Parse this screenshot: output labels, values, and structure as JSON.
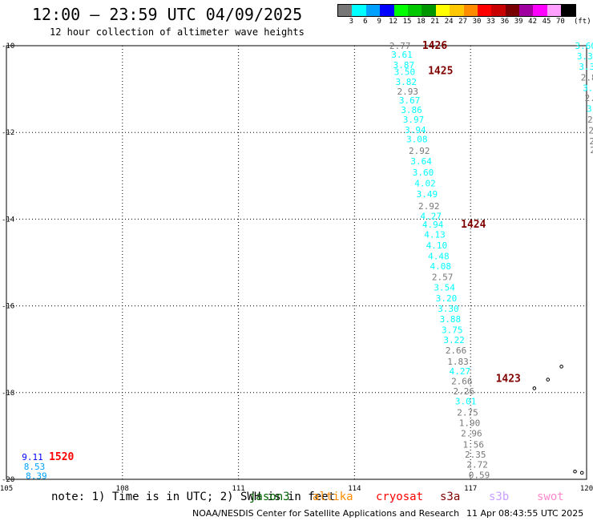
{
  "header": {
    "title": "12:00 – 23:59 UTC 04/09/2025",
    "subtitle": "12 hour collection of altimeter wave heights"
  },
  "colorbar": {
    "colors": [
      "#777777",
      "#00ffff",
      "#00a0ff",
      "#0000ff",
      "#00ff00",
      "#00c800",
      "#009600",
      "#ffff00",
      "#ffc800",
      "#ff8c00",
      "#ff0000",
      "#c80000",
      "#780000",
      "#a000a0",
      "#ff00ff",
      "#ffa0ff",
      "#000000"
    ],
    "ticks": [
      "3",
      "6",
      "9",
      "12",
      "15",
      "18",
      "21",
      "24",
      "27",
      "30",
      "33",
      "36",
      "39",
      "42",
      "45",
      "70"
    ],
    "unit": "(ft)"
  },
  "map": {
    "lat_labels": [
      "-10",
      "-12",
      "-14",
      "-16",
      "-18",
      "-20"
    ],
    "lon_labels": [
      "105",
      "108",
      "111",
      "114",
      "117",
      "120"
    ],
    "passes": [
      {
        "name": "1426",
        "lon": 115.75,
        "lat": -10.0,
        "color": "#800000"
      },
      {
        "name": "1425",
        "lon": 115.9,
        "lat": -10.58,
        "color": "#800000"
      },
      {
        "name": "1424",
        "lon": 116.75,
        "lat": -14.12,
        "color": "#800000"
      },
      {
        "name": "1423",
        "lon": 117.65,
        "lat": -17.68,
        "color": "#800000"
      },
      {
        "name": "1520",
        "lon": 106.1,
        "lat": -19.48,
        "color": "#ff0000"
      }
    ],
    "obs": [
      {
        "lon": 114.9,
        "lat": -10.0,
        "v": "2.77"
      },
      {
        "lon": 114.95,
        "lat": -10.2,
        "v": "3.61"
      },
      {
        "lon": 115.0,
        "lat": -10.44,
        "v": "3.87"
      },
      {
        "lon": 115.02,
        "lat": -10.6,
        "v": "3.50"
      },
      {
        "lon": 115.06,
        "lat": -10.83,
        "v": "3.82"
      },
      {
        "lon": 115.1,
        "lat": -11.05,
        "v": "2.93"
      },
      {
        "lon": 115.15,
        "lat": -11.26,
        "v": "3.67"
      },
      {
        "lon": 115.2,
        "lat": -11.48,
        "v": "3.86"
      },
      {
        "lon": 115.25,
        "lat": -11.7,
        "v": "3.97"
      },
      {
        "lon": 115.3,
        "lat": -11.94,
        "v": "3.94"
      },
      {
        "lon": 115.34,
        "lat": -12.15,
        "v": "3.08"
      },
      {
        "lon": 115.4,
        "lat": -12.42,
        "v": "2.92"
      },
      {
        "lon": 115.45,
        "lat": -12.66,
        "v": "3.64"
      },
      {
        "lon": 115.5,
        "lat": -12.92,
        "v": "3.60"
      },
      {
        "lon": 115.55,
        "lat": -13.17,
        "v": "4.02"
      },
      {
        "lon": 115.6,
        "lat": -13.42,
        "v": "3.49"
      },
      {
        "lon": 115.65,
        "lat": -13.7,
        "v": "2.92"
      },
      {
        "lon": 115.7,
        "lat": -13.93,
        "v": "4.27"
      },
      {
        "lon": 115.75,
        "lat": -14.12,
        "v": "4.94"
      },
      {
        "lon": 115.8,
        "lat": -14.35,
        "v": "4.13"
      },
      {
        "lon": 115.85,
        "lat": -14.6,
        "v": "4.10"
      },
      {
        "lon": 115.9,
        "lat": -14.85,
        "v": "4.48"
      },
      {
        "lon": 115.95,
        "lat": -15.08,
        "v": "4.08"
      },
      {
        "lon": 116.0,
        "lat": -15.33,
        "v": "2.57"
      },
      {
        "lon": 116.05,
        "lat": -15.57,
        "v": "3.54"
      },
      {
        "lon": 116.1,
        "lat": -15.82,
        "v": "3.20"
      },
      {
        "lon": 116.15,
        "lat": -16.06,
        "v": "3.30"
      },
      {
        "lon": 116.2,
        "lat": -16.3,
        "v": "3.88"
      },
      {
        "lon": 116.25,
        "lat": -16.55,
        "v": "3.75"
      },
      {
        "lon": 116.3,
        "lat": -16.78,
        "v": "3.22"
      },
      {
        "lon": 116.35,
        "lat": -17.02,
        "v": "2.66"
      },
      {
        "lon": 116.4,
        "lat": -17.28,
        "v": "1.83"
      },
      {
        "lon": 116.45,
        "lat": -17.5,
        "v": "4.27"
      },
      {
        "lon": 116.5,
        "lat": -17.74,
        "v": "2.66"
      },
      {
        "lon": 116.55,
        "lat": -17.97,
        "v": "2.26"
      },
      {
        "lon": 116.6,
        "lat": -18.2,
        "v": "3.01"
      },
      {
        "lon": 116.65,
        "lat": -18.46,
        "v": "2.75"
      },
      {
        "lon": 116.7,
        "lat": -18.7,
        "v": "1.90"
      },
      {
        "lon": 116.75,
        "lat": -18.94,
        "v": "2.96"
      },
      {
        "lon": 116.8,
        "lat": -19.2,
        "v": "1.56"
      },
      {
        "lon": 116.85,
        "lat": -19.43,
        "v": "2.35"
      },
      {
        "lon": 116.9,
        "lat": -19.66,
        "v": "2.72"
      },
      {
        "lon": 116.95,
        "lat": -19.9,
        "v": "0.59"
      },
      {
        "lon": 105.4,
        "lat": -19.48,
        "v": "9.11"
      },
      {
        "lon": 105.45,
        "lat": -19.7,
        "v": "8.53"
      },
      {
        "lon": 105.5,
        "lat": -19.92,
        "v": "8.39"
      },
      {
        "lon": 119.7,
        "lat": -10.0,
        "v": "3.60"
      },
      {
        "lon": 119.75,
        "lat": -10.24,
        "v": "3.34"
      },
      {
        "lon": 119.8,
        "lat": -10.48,
        "v": "3.3"
      },
      {
        "lon": 119.85,
        "lat": -10.73,
        "v": "2.81"
      },
      {
        "lon": 119.9,
        "lat": -10.97,
        "v": "3.3"
      },
      {
        "lon": 119.95,
        "lat": -11.2,
        "v": "2.9"
      },
      {
        "lon": 120.0,
        "lat": -11.45,
        "v": "3.3"
      },
      {
        "lon": 120.02,
        "lat": -11.7,
        "v": "2."
      },
      {
        "lon": 120.05,
        "lat": -11.95,
        "v": "2."
      },
      {
        "lon": 120.07,
        "lat": -12.2,
        "v": "2"
      },
      {
        "lon": 120.09,
        "lat": -12.4,
        "v": "2"
      }
    ],
    "islands": [
      {
        "lon": 119.35,
        "lat": -17.4
      },
      {
        "lon": 119.0,
        "lat": -17.7
      },
      {
        "lon": 118.65,
        "lat": -17.9
      },
      {
        "lon": 119.7,
        "lat": -19.82
      },
      {
        "lon": 119.88,
        "lat": -19.85
      }
    ]
  },
  "note": {
    "text": "note: 1) Time is in UTC; 2) SWH is in feet",
    "satellites": [
      {
        "name": "jason3",
        "color": "#006400"
      },
      {
        "name": "altika",
        "color": "#ff8c00"
      },
      {
        "name": "cryosat",
        "color": "#ff0000"
      },
      {
        "name": "s3a",
        "color": "#800000"
      },
      {
        "name": "s3b",
        "color": "#c8a0ff"
      },
      {
        "name": "swot",
        "color": "#ff88cc"
      }
    ]
  },
  "footer": {
    "credit": "NOAA/NESDIS Center for Satellite Applications and Research",
    "timestamp": "11 Apr 08:43:55 UTC 2025"
  }
}
